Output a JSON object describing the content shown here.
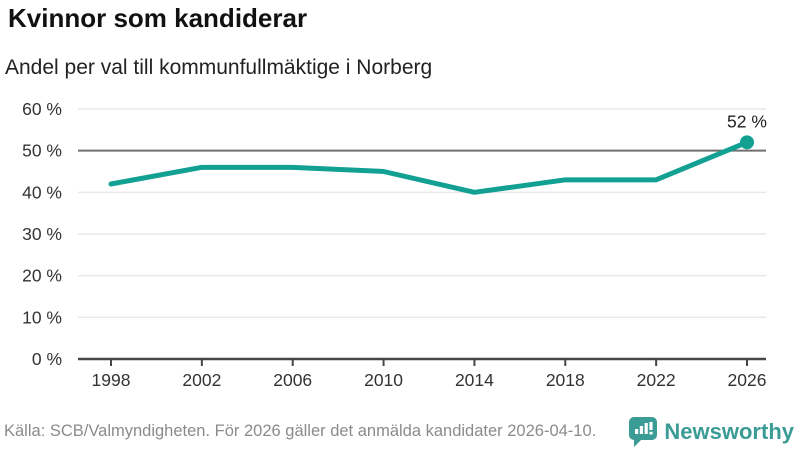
{
  "header": {
    "title": "Kvinnor som kandiderar",
    "subtitle": "Andel per val till kommunfullmäktige i Norberg"
  },
  "footer": {
    "source": "Källa: SCB/Valmyndigheten. För 2026 gäller det anmälda kandidater 2026-04-10.",
    "brand": "Newsworthy",
    "logo_icon": "bar-chart-speech-bubble-icon"
  },
  "colors": {
    "line": "#12a093",
    "reference_line": "#6f6f6f",
    "gridline": "#e9e9e9",
    "axis": "#474747",
    "tick_text": "#333333",
    "annotation_text": "#222222",
    "muted_text": "#8b8b8b",
    "brand_teal": "#3b9b95"
  },
  "chart_data": {
    "type": "line",
    "title": "Kvinnor som kandiderar",
    "subtitle": "Andel per val till kommunfullmäktige i Norberg",
    "x": [
      1998,
      2002,
      2006,
      2010,
      2014,
      2018,
      2022,
      2026
    ],
    "values": [
      42,
      46,
      46,
      45,
      40,
      43,
      43,
      52
    ],
    "unit": "%",
    "ylim": [
      0,
      60
    ],
    "ytick_step": 10,
    "ytick_suffix": " %",
    "reference_line": 50,
    "last_point_label": "52 %",
    "grid": true,
    "legend": "none"
  }
}
